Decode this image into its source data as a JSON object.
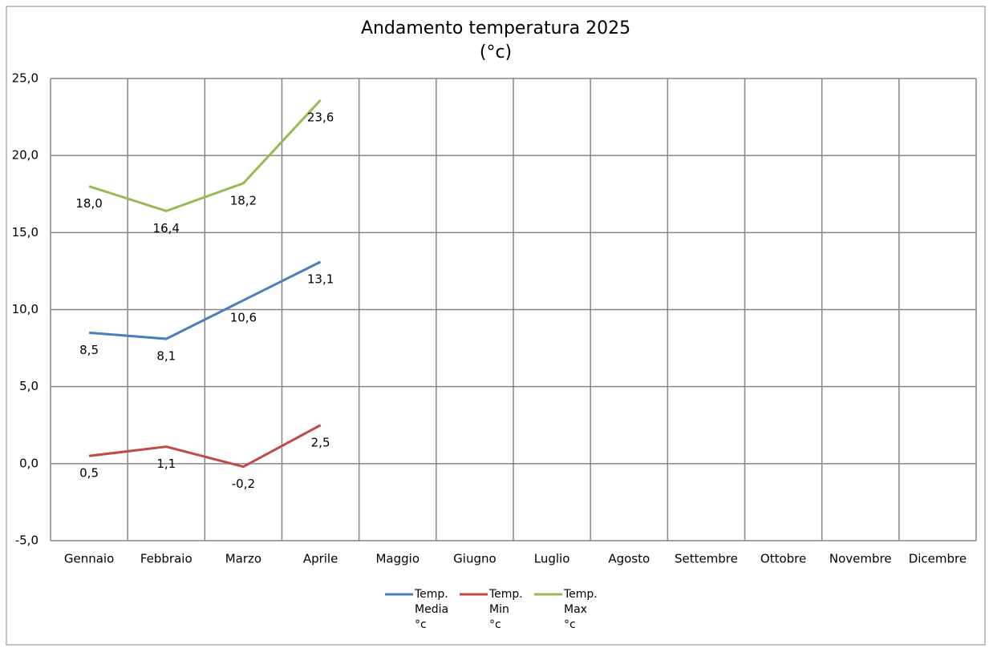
{
  "chart_data": {
    "type": "line",
    "title": "Andamento temperatura 2025",
    "subtitle": "(°c)",
    "categories": [
      "Gennaio",
      "Febbraio",
      "Marzo",
      "Aprile",
      "Maggio",
      "Giugno",
      "Luglio",
      "Agosto",
      "Settembre",
      "Ottobre",
      "Novembre",
      "Dicembre"
    ],
    "series": [
      {
        "name": "Temp. Media °c",
        "color": "#4a7ebb",
        "values": [
          8.5,
          8.1,
          10.6,
          13.1,
          null,
          null,
          null,
          null,
          null,
          null,
          null,
          null
        ],
        "value_labels": [
          "8,5",
          "8,1",
          "10,6",
          "13,1",
          null,
          null,
          null,
          null,
          null,
          null,
          null,
          null
        ]
      },
      {
        "name": "Temp. Min °c",
        "color": "#be4b48",
        "values": [
          0.5,
          1.1,
          -0.2,
          2.5,
          null,
          null,
          null,
          null,
          null,
          null,
          null,
          null
        ],
        "value_labels": [
          "0,5",
          "1,1",
          "-0,2",
          "2,5",
          null,
          null,
          null,
          null,
          null,
          null,
          null,
          null
        ]
      },
      {
        "name": "Temp. Max °c",
        "color": "#98b954",
        "values": [
          18.0,
          16.4,
          18.2,
          23.6,
          null,
          null,
          null,
          null,
          null,
          null,
          null,
          null
        ],
        "value_labels": [
          "18,0",
          "16,4",
          "18,2",
          "23,6",
          null,
          null,
          null,
          null,
          null,
          null,
          null,
          null
        ]
      }
    ],
    "ylim": [
      -5,
      25
    ],
    "yticks": [
      {
        "value": -5,
        "label": "-5,0"
      },
      {
        "value": 0,
        "label": "0,0"
      },
      {
        "value": 5,
        "label": "5,0"
      },
      {
        "value": 10,
        "label": "10,0"
      },
      {
        "value": 15,
        "label": "15,0"
      },
      {
        "value": 20,
        "label": "20,0"
      },
      {
        "value": 25,
        "label": "25,0"
      }
    ],
    "grid": true
  }
}
